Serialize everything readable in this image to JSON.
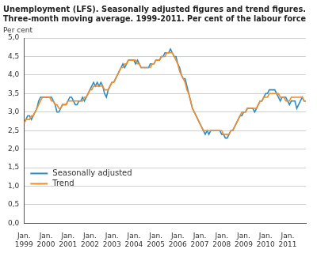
{
  "chart_data": {
    "type": "line",
    "title": [
      "Unemployment (LFS). Seasonally adjusted figures and trend figures.",
      "Three-month moving average. 1999-2011. Per cent of the labour force"
    ],
    "ylabel": "Per cent",
    "categories": [
      "Jan. 1999",
      null,
      null,
      null,
      null,
      null,
      null,
      null,
      null,
      null,
      null,
      null,
      "Jan. 2000",
      null,
      null,
      null,
      null,
      null,
      null,
      null,
      null,
      null,
      null,
      null,
      "Jan. 2001",
      null,
      null,
      null,
      null,
      null,
      null,
      null,
      null,
      null,
      null,
      null,
      "Jan. 2002",
      null,
      null,
      null,
      null,
      null,
      null,
      null,
      null,
      null,
      null,
      null,
      "Jan. 2003",
      null,
      null,
      null,
      null,
      null,
      null,
      null,
      null,
      null,
      null,
      null,
      "Jan. 2004",
      null,
      null,
      null,
      null,
      null,
      null,
      null,
      null,
      null,
      null,
      null,
      "Jan. 2005",
      null,
      null,
      null,
      null,
      null,
      null,
      null,
      null,
      null,
      null,
      null,
      "Jan. 2006",
      null,
      null,
      null,
      null,
      null,
      null,
      null,
      null,
      null,
      null,
      null,
      "Jan. 2007",
      null,
      null,
      null,
      null,
      null,
      null,
      null,
      null,
      null,
      null,
      null,
      "Jan. 2008",
      null,
      null,
      null,
      null,
      null,
      null,
      null,
      null,
      null,
      null,
      null,
      "Jan. 2009",
      null,
      null,
      null,
      null,
      null,
      null,
      null,
      null,
      null,
      null,
      null,
      "Jan. 2010",
      null,
      null,
      null,
      null,
      null,
      null,
      null,
      null,
      null,
      null,
      null,
      "Jan. 2011",
      null,
      null,
      null,
      null,
      null,
      null,
      null,
      null,
      null,
      null
    ],
    "series": [
      {
        "name": "Seasonally adjusted",
        "color": "#2b8cc4",
        "values": [
          2.7,
          2.8,
          2.9,
          2.9,
          2.8,
          2.9,
          3.0,
          3.1,
          3.3,
          3.4,
          3.4,
          3.4,
          3.4,
          3.4,
          3.4,
          3.4,
          3.3,
          3.2,
          3.0,
          3.0,
          3.1,
          3.2,
          3.2,
          3.2,
          3.3,
          3.4,
          3.4,
          3.3,
          3.2,
          3.2,
          3.3,
          3.3,
          3.4,
          3.3,
          3.4,
          3.5,
          3.6,
          3.7,
          3.8,
          3.7,
          3.8,
          3.7,
          3.8,
          3.7,
          3.5,
          3.4,
          3.6,
          3.7,
          3.8,
          3.8,
          3.9,
          4.0,
          4.1,
          4.2,
          4.3,
          4.2,
          4.3,
          4.4,
          4.4,
          4.4,
          4.4,
          4.3,
          4.4,
          4.3,
          4.2,
          4.2,
          4.2,
          4.2,
          4.2,
          4.3,
          4.3,
          4.3,
          4.4,
          4.4,
          4.4,
          4.5,
          4.5,
          4.6,
          4.6,
          4.6,
          4.7,
          4.6,
          4.5,
          4.5,
          4.3,
          4.2,
          4.0,
          3.9,
          3.9,
          3.7,
          3.5,
          3.3,
          3.1,
          3.0,
          2.9,
          2.8,
          2.7,
          2.6,
          2.5,
          2.4,
          2.5,
          2.4,
          2.5,
          2.5,
          2.5,
          2.5,
          2.5,
          2.5,
          2.4,
          2.4,
          2.3,
          2.3,
          2.4,
          2.5,
          2.5,
          2.6,
          2.7,
          2.8,
          2.9,
          2.9,
          3.0,
          3.0,
          3.1,
          3.1,
          3.1,
          3.1,
          3.0,
          3.1,
          3.2,
          3.3,
          3.3,
          3.4,
          3.5,
          3.5,
          3.6,
          3.6,
          3.6,
          3.6,
          3.5,
          3.4,
          3.3,
          3.4,
          3.4,
          3.4,
          3.3,
          3.2,
          3.3,
          3.3,
          3.3,
          3.1,
          3.2,
          3.3,
          3.4,
          3.3,
          3.3
        ]
      },
      {
        "name": "Trend",
        "color": "#f28c28",
        "values": [
          2.7,
          2.8,
          2.8,
          2.8,
          2.9,
          2.9,
          3.0,
          3.1,
          3.2,
          3.3,
          3.4,
          3.4,
          3.4,
          3.4,
          3.4,
          3.3,
          3.3,
          3.2,
          3.2,
          3.1,
          3.1,
          3.2,
          3.2,
          3.2,
          3.3,
          3.3,
          3.3,
          3.3,
          3.3,
          3.3,
          3.3,
          3.3,
          3.3,
          3.4,
          3.4,
          3.5,
          3.6,
          3.6,
          3.7,
          3.7,
          3.7,
          3.7,
          3.7,
          3.7,
          3.6,
          3.6,
          3.6,
          3.7,
          3.8,
          3.8,
          3.9,
          4.0,
          4.1,
          4.2,
          4.2,
          4.3,
          4.3,
          4.4,
          4.4,
          4.4,
          4.4,
          4.4,
          4.3,
          4.3,
          4.2,
          4.2,
          4.2,
          4.2,
          4.2,
          4.2,
          4.3,
          4.3,
          4.4,
          4.4,
          4.4,
          4.5,
          4.5,
          4.5,
          4.6,
          4.6,
          4.6,
          4.6,
          4.5,
          4.4,
          4.3,
          4.1,
          4.0,
          3.9,
          3.8,
          3.6,
          3.5,
          3.3,
          3.1,
          3.0,
          2.9,
          2.8,
          2.7,
          2.6,
          2.5,
          2.5,
          2.5,
          2.5,
          2.5,
          2.5,
          2.5,
          2.5,
          2.5,
          2.5,
          2.5,
          2.4,
          2.4,
          2.4,
          2.4,
          2.5,
          2.5,
          2.6,
          2.7,
          2.8,
          2.9,
          3.0,
          3.0,
          3.0,
          3.1,
          3.1,
          3.1,
          3.1,
          3.1,
          3.1,
          3.2,
          3.3,
          3.3,
          3.4,
          3.4,
          3.4,
          3.5,
          3.5,
          3.5,
          3.5,
          3.5,
          3.5,
          3.4,
          3.4,
          3.4,
          3.3,
          3.3,
          3.3,
          3.4,
          3.4,
          3.4,
          3.4,
          3.4,
          3.4,
          3.4,
          3.3,
          3.3
        ]
      }
    ],
    "ylim": [
      0,
      5
    ],
    "yticks": [
      {
        "value": 0,
        "label": "0,0"
      },
      {
        "value": 0.5,
        "label": "0,5"
      },
      {
        "value": 1,
        "label": "1,0"
      },
      {
        "value": 1.5,
        "label": "1,5"
      },
      {
        "value": 2,
        "label": "2,0"
      },
      {
        "value": 2.5,
        "label": "2,5"
      },
      {
        "value": 3,
        "label": "3,0"
      },
      {
        "value": 3.5,
        "label": "3,5"
      },
      {
        "value": 4,
        "label": "4,0"
      },
      {
        "value": 4.5,
        "label": "4,5"
      },
      {
        "value": 5,
        "label": "5,0"
      }
    ],
    "grid": true,
    "legend": "lower left"
  }
}
